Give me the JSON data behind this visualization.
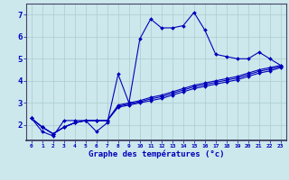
{
  "xlabel": "Graphe des températures (°c)",
  "bg_color": "#cce8ec",
  "grid_color": "#aacccc",
  "line_color": "#0000bb",
  "xlim": [
    -0.5,
    23.5
  ],
  "ylim": [
    1.3,
    7.5
  ],
  "xticks": [
    0,
    1,
    2,
    3,
    4,
    5,
    6,
    7,
    8,
    9,
    10,
    11,
    12,
    13,
    14,
    15,
    16,
    17,
    18,
    19,
    20,
    21,
    22,
    23
  ],
  "yticks": [
    2,
    3,
    4,
    5,
    6,
    7
  ],
  "series": [
    [
      2.3,
      1.7,
      1.5,
      2.2,
      2.2,
      2.2,
      1.7,
      2.1,
      4.3,
      3.0,
      5.9,
      6.8,
      6.4,
      6.4,
      6.5,
      7.1,
      6.3,
      5.2,
      5.1,
      5.0,
      5.0,
      5.3,
      5.0,
      4.7
    ],
    [
      2.3,
      1.9,
      1.6,
      1.9,
      2.1,
      2.2,
      2.2,
      2.2,
      2.8,
      2.9,
      3.0,
      3.1,
      3.2,
      3.35,
      3.5,
      3.65,
      3.75,
      3.85,
      3.95,
      4.05,
      4.2,
      4.35,
      4.45,
      4.6
    ],
    [
      2.3,
      1.9,
      1.6,
      1.9,
      2.1,
      2.2,
      2.2,
      2.2,
      2.85,
      2.95,
      3.05,
      3.18,
      3.28,
      3.43,
      3.58,
      3.73,
      3.83,
      3.93,
      4.03,
      4.13,
      4.28,
      4.43,
      4.53,
      4.65
    ],
    [
      2.3,
      1.9,
      1.6,
      1.9,
      2.1,
      2.2,
      2.2,
      2.2,
      2.9,
      3.0,
      3.1,
      3.25,
      3.35,
      3.5,
      3.65,
      3.8,
      3.9,
      4.0,
      4.1,
      4.2,
      4.35,
      4.5,
      4.6,
      4.7
    ]
  ]
}
